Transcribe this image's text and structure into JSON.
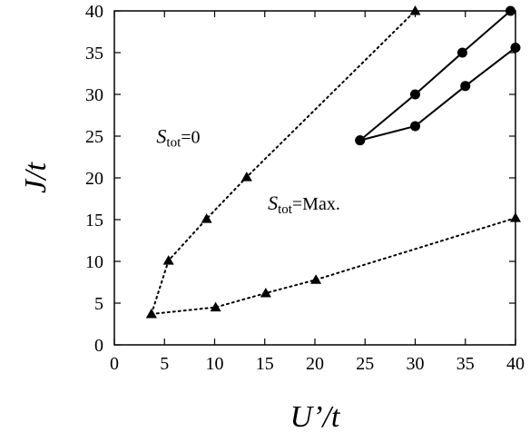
{
  "chart_data": {
    "type": "line",
    "xlabel": "U’/t",
    "ylabel": "J/t",
    "xlim": [
      0,
      40
    ],
    "ylim": [
      0,
      40
    ],
    "xticks": [
      0,
      5,
      10,
      15,
      20,
      25,
      30,
      35,
      40
    ],
    "yticks": [
      0,
      5,
      10,
      15,
      20,
      25,
      30,
      35,
      40
    ],
    "grid": false,
    "legend": "none",
    "series": [
      {
        "style": "dotted",
        "marker": "triangle",
        "x": [
          3.7,
          5.4,
          9.2,
          13.2,
          30.0
        ],
        "y": [
          3.7,
          10.1,
          15.1,
          20.1,
          40.0
        ]
      },
      {
        "style": "dotted",
        "marker": "triangle",
        "x": [
          3.7,
          10.1,
          15.1,
          20.1,
          40.0
        ],
        "y": [
          3.7,
          4.5,
          6.2,
          7.8,
          15.2
        ]
      },
      {
        "style": "solid",
        "marker": "circle",
        "x": [
          24.5,
          30.0,
          34.7,
          39.5
        ],
        "y": [
          24.5,
          30.0,
          35.0,
          40.0
        ]
      },
      {
        "style": "solid",
        "marker": "circle",
        "x": [
          24.5,
          30.0,
          35.0,
          40.0
        ],
        "y": [
          24.5,
          26.2,
          31.0,
          35.6
        ]
      }
    ],
    "annotations": [
      {
        "main": "S",
        "sub": "tot",
        "rest": "=0",
        "x": 4.2,
        "y": 24.2
      },
      {
        "main": "S",
        "sub": "tot",
        "rest": "=Max.",
        "x": 15.3,
        "y": 16.2
      }
    ]
  }
}
